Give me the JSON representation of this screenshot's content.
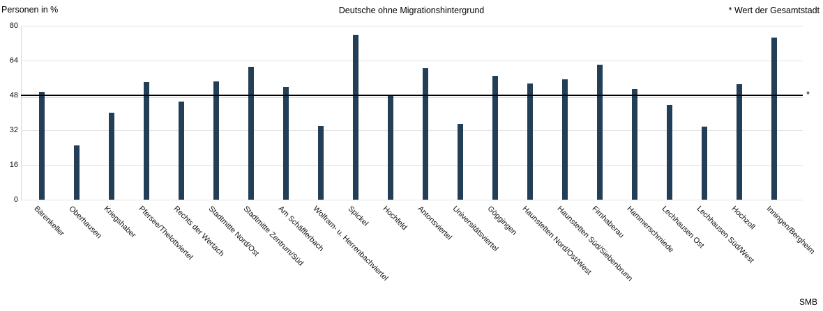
{
  "header": {
    "y_axis_title": "Personen in %",
    "title": "Deutsche ohne Migrationshintergrund",
    "legend_note": "* Wert der Gesamtstadt"
  },
  "footer": {
    "source": "SMB"
  },
  "chart_data": {
    "type": "bar",
    "title": "Deutsche ohne Migrationshintergrund",
    "ylabel": "Personen in %",
    "xlabel": "",
    "ylim": [
      0,
      80
    ],
    "yticks": [
      0,
      16,
      32,
      48,
      64,
      80
    ],
    "grid": true,
    "legend_position": "none",
    "bar_color": "#233F58",
    "reference_line": {
      "value": 48,
      "marker": "*",
      "label": "* Wert der Gesamtstadt"
    },
    "categories": [
      "Bärenkeller",
      "Oberhausen",
      "Kriegshaber",
      "Pfersee/Thelottviertel",
      "Rechts der Wertach",
      "Stadtmitte Nord/Ost",
      "Stadtmitte Zentrum/Süd",
      "Am Schäfflerbach",
      "Wolfram- u. Herrenbachviertel",
      "Spickel",
      "Hochfeld",
      "Antonsviertel",
      "Universitätsviertel",
      "Göggingen",
      "Haunstetten Nord/Ost/West",
      "Haunstetten Süd/Siebenbrunn",
      "Firnhaberau",
      "Hammerschmiede",
      "Lechhausen Ost",
      "Lechhausen Süd/West",
      "Hochzoll",
      "Inningen/Bergheim"
    ],
    "values": [
      49.5,
      25,
      40,
      54,
      45,
      54.5,
      61,
      52,
      34,
      76,
      48,
      60.5,
      35,
      57,
      53.5,
      55.5,
      62,
      51,
      43.5,
      33.5,
      53,
      74.5
    ]
  }
}
